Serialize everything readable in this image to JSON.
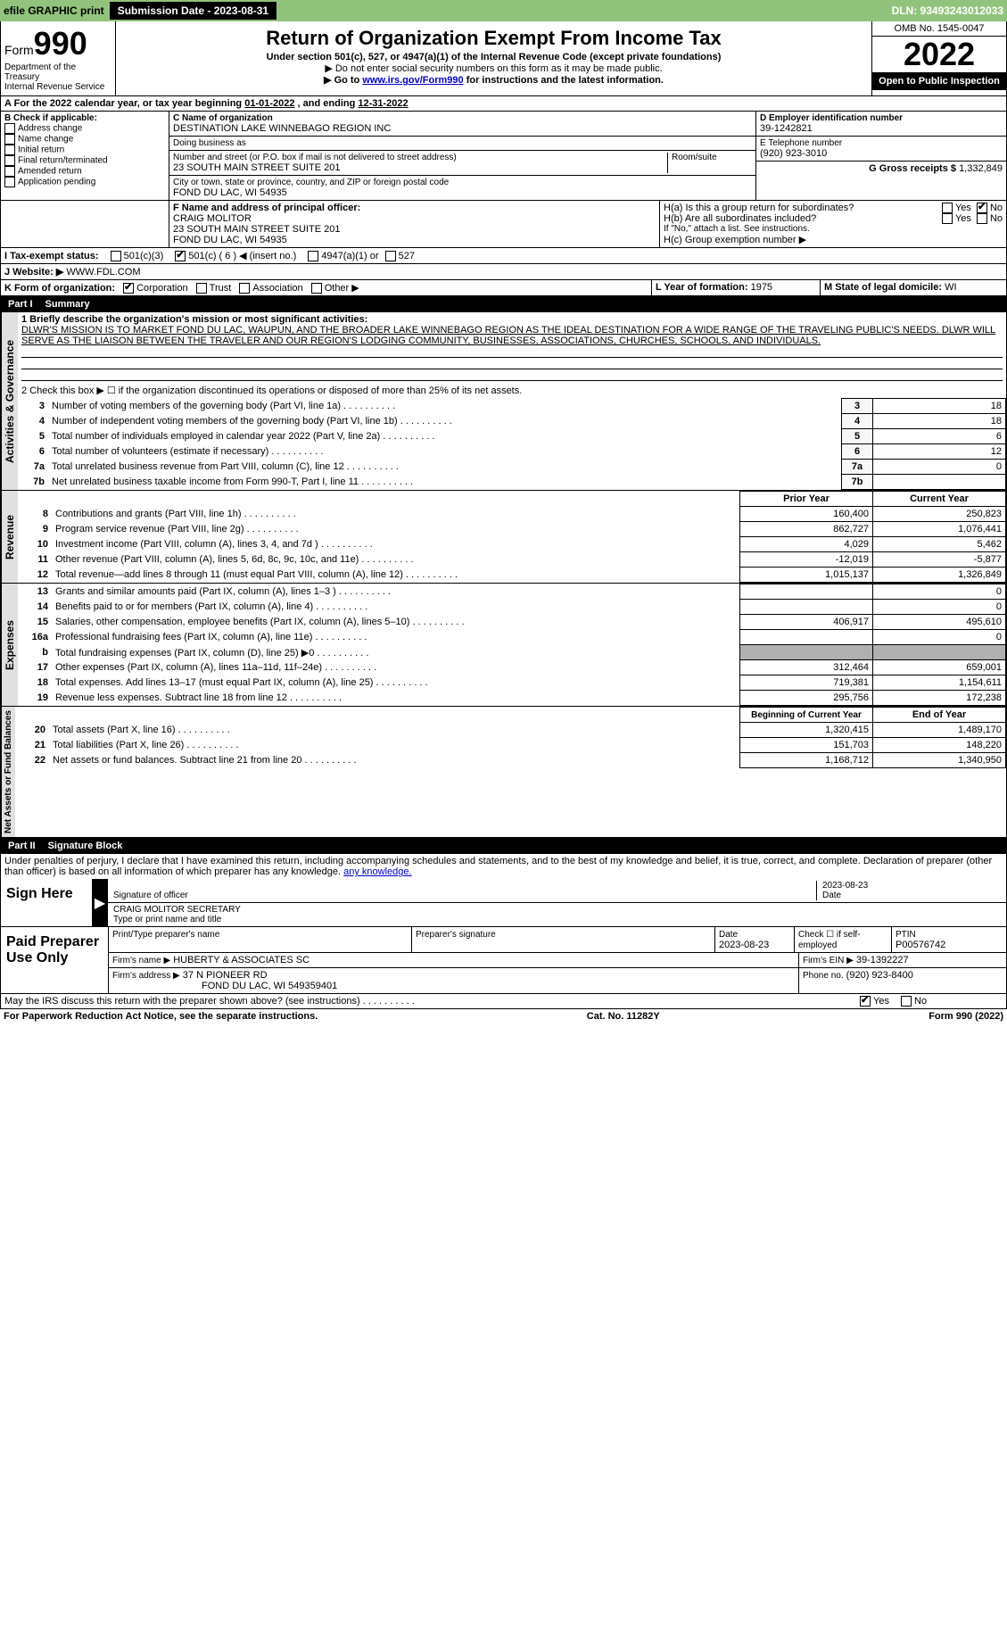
{
  "topbar": {
    "efile": "efile GRAPHIC print",
    "submission_label": "Submission Date - 2023-08-31",
    "dln": "DLN: 93493243012033"
  },
  "header": {
    "form_prefix": "Form",
    "form_number": "990",
    "dept1": "Department of the Treasury",
    "dept2": "Internal Revenue Service",
    "title": "Return of Organization Exempt From Income Tax",
    "subtitle": "Under section 501(c), 527, or 4947(a)(1) of the Internal Revenue Code (except private foundations)",
    "note1": "▶ Do not enter social security numbers on this form as it may be made public.",
    "note2_pre": "▶ Go to ",
    "note2_link": "www.irs.gov/Form990",
    "note2_post": " for instructions and the latest information.",
    "omb": "OMB No. 1545-0047",
    "year": "2022",
    "inspect": "Open to Public Inspection"
  },
  "period": {
    "line_pre": "For the 2022 calendar year, or tax year beginning ",
    "begin": "01-01-2022",
    "mid": " , and ending ",
    "end": "12-31-2022"
  },
  "boxB": {
    "label": "B Check if applicable:",
    "items": [
      "Address change",
      "Name change",
      "Initial return",
      "Final return/terminated",
      "Amended return",
      "Application pending"
    ]
  },
  "boxC": {
    "name_label": "C Name of organization",
    "name": "DESTINATION LAKE WINNEBAGO REGION INC",
    "dba_label": "Doing business as",
    "dba": "",
    "street_label": "Number and street (or P.O. box if mail is not delivered to street address)",
    "room_label": "Room/suite",
    "street": "23 SOUTH MAIN STREET SUITE 201",
    "city_label": "City or town, state or province, country, and ZIP or foreign postal code",
    "city": "FOND DU LAC, WI  54935"
  },
  "boxD": {
    "label": "D Employer identification number",
    "value": "39-1242821"
  },
  "boxE": {
    "label": "E Telephone number",
    "value": "(920) 923-3010"
  },
  "boxG": {
    "label": "G Gross receipts $",
    "value": "1,332,849"
  },
  "boxF": {
    "label": "F Name and address of principal officer:",
    "name": "CRAIG MOLITOR",
    "street": "23 SOUTH MAIN STREET SUITE 201",
    "city": "FOND DU LAC, WI  54935"
  },
  "boxH": {
    "a_label": "H(a)  Is this a group return for subordinates?",
    "b_label": "H(b)  Are all subordinates included?",
    "b_note": "If \"No,\" attach a list. See instructions.",
    "c_label": "H(c)  Group exemption number ▶",
    "yes": "Yes",
    "no": "No"
  },
  "boxI": {
    "label": "I  Tax-exempt status:",
    "o501c3": "501(c)(3)",
    "o501c": "501(c) ( 6 ) ◀ (insert no.)",
    "o4947": "4947(a)(1) or",
    "o527": "527"
  },
  "boxJ": {
    "label": "J  Website: ▶",
    "value": "WWW.FDL.COM"
  },
  "boxK": {
    "label": "K Form of organization:",
    "corp": "Corporation",
    "trust": "Trust",
    "assoc": "Association",
    "other": "Other ▶"
  },
  "boxL": {
    "label": "L Year of formation:",
    "value": "1975"
  },
  "boxM": {
    "label": "M State of legal domicile:",
    "value": "WI"
  },
  "part1": {
    "label": "Part I",
    "title": "Summary"
  },
  "mission": {
    "label": "1  Briefly describe the organization's mission or most significant activities:",
    "text": "DLWR'S MISSION IS TO MARKET FOND DU LAC, WAUPUN, AND THE BROADER LAKE WINNEBAGO REGION AS THE IDEAL DESTINATION FOR A WIDE RANGE OF THE TRAVELING PUBLIC'S NEEDS. DLWR WILL SERVE AS THE LIAISON BETWEEN THE TRAVELER AND OUR REGION'S LODGING COMMUNITY, BUSINESSES, ASSOCIATIONS, CHURCHES, SCHOOLS, AND INDIVIDUALS."
  },
  "governance": {
    "tab": "Activities & Governance",
    "line2": "2  Check this box ▶ ☐ if the organization discontinued its operations or disposed of more than 25% of its net assets.",
    "rows": [
      {
        "n": "3",
        "d": "Number of voting members of the governing body (Part VI, line 1a)",
        "v": "18"
      },
      {
        "n": "4",
        "d": "Number of independent voting members of the governing body (Part VI, line 1b)",
        "v": "18"
      },
      {
        "n": "5",
        "d": "Total number of individuals employed in calendar year 2022 (Part V, line 2a)",
        "v": "6"
      },
      {
        "n": "6",
        "d": "Total number of volunteers (estimate if necessary)",
        "v": "12"
      },
      {
        "n": "7a",
        "d": "Total unrelated business revenue from Part VIII, column (C), line 12",
        "v": "0"
      },
      {
        "n": "7b",
        "d": "Net unrelated business taxable income from Form 990-T, Part I, line 11",
        "v": ""
      }
    ]
  },
  "revenue": {
    "tab": "Revenue",
    "col_prior": "Prior Year",
    "col_current": "Current Year",
    "rows": [
      {
        "n": "8",
        "d": "Contributions and grants (Part VIII, line 1h)",
        "p": "160,400",
        "c": "250,823"
      },
      {
        "n": "9",
        "d": "Program service revenue (Part VIII, line 2g)",
        "p": "862,727",
        "c": "1,076,441"
      },
      {
        "n": "10",
        "d": "Investment income (Part VIII, column (A), lines 3, 4, and 7d )",
        "p": "4,029",
        "c": "5,462"
      },
      {
        "n": "11",
        "d": "Other revenue (Part VIII, column (A), lines 5, 6d, 8c, 9c, 10c, and 11e)",
        "p": "-12,019",
        "c": "-5,877"
      },
      {
        "n": "12",
        "d": "Total revenue—add lines 8 through 11 (must equal Part VIII, column (A), line 12)",
        "p": "1,015,137",
        "c": "1,326,849"
      }
    ]
  },
  "expenses": {
    "tab": "Expenses",
    "rows": [
      {
        "n": "13",
        "d": "Grants and similar amounts paid (Part IX, column (A), lines 1–3 )",
        "p": "",
        "c": "0"
      },
      {
        "n": "14",
        "d": "Benefits paid to or for members (Part IX, column (A), line 4)",
        "p": "",
        "c": "0"
      },
      {
        "n": "15",
        "d": "Salaries, other compensation, employee benefits (Part IX, column (A), lines 5–10)",
        "p": "406,917",
        "c": "495,610"
      },
      {
        "n": "16a",
        "d": "Professional fundraising fees (Part IX, column (A), line 11e)",
        "p": "",
        "c": "0"
      },
      {
        "n": "b",
        "d": "Total fundraising expenses (Part IX, column (D), line 25) ▶0",
        "p": "GREY",
        "c": "GREY"
      },
      {
        "n": "17",
        "d": "Other expenses (Part IX, column (A), lines 11a–11d, 11f–24e)",
        "p": "312,464",
        "c": "659,001"
      },
      {
        "n": "18",
        "d": "Total expenses. Add lines 13–17 (must equal Part IX, column (A), line 25)",
        "p": "719,381",
        "c": "1,154,611"
      },
      {
        "n": "19",
        "d": "Revenue less expenses. Subtract line 18 from line 12",
        "p": "295,756",
        "c": "172,238"
      }
    ]
  },
  "netassets": {
    "tab": "Net Assets or Fund Balances",
    "col_begin": "Beginning of Current Year",
    "col_end": "End of Year",
    "rows": [
      {
        "n": "20",
        "d": "Total assets (Part X, line 16)",
        "p": "1,320,415",
        "c": "1,489,170"
      },
      {
        "n": "21",
        "d": "Total liabilities (Part X, line 26)",
        "p": "151,703",
        "c": "148,220"
      },
      {
        "n": "22",
        "d": "Net assets or fund balances. Subtract line 21 from line 20",
        "p": "1,168,712",
        "c": "1,340,950"
      }
    ]
  },
  "part2": {
    "label": "Part II",
    "title": "Signature Block"
  },
  "penalties": "Under penalties of perjury, I declare that I have examined this return, including accompanying schedules and statements, and to the best of my knowledge and belief, it is true, correct, and complete. Declaration of preparer (other than officer) is based on all information of which preparer has any knowledge.",
  "sign": {
    "label": "Sign Here",
    "sig_label": "Signature of officer",
    "date_label": "Date",
    "date": "2023-08-23",
    "name": "CRAIG MOLITOR SECRETARY",
    "name_label": "Type or print name and title"
  },
  "preparer": {
    "label": "Paid Preparer Use Only",
    "c1": "Print/Type preparer's name",
    "c2": "Preparer's signature",
    "c3": "Date",
    "c3v": "2023-08-23",
    "c4": "Check ☐ if self-employed",
    "c5": "PTIN",
    "c5v": "P00576742",
    "firm_label": "Firm's name    ▶",
    "firm": "HUBERTY & ASSOCIATES SC",
    "ein_label": "Firm's EIN ▶",
    "ein": "39-1392227",
    "addr_label": "Firm's address ▶",
    "addr1": "37 N PIONEER RD",
    "addr2": "FOND DU LAC, WI  549359401",
    "phone_label": "Phone no.",
    "phone": "(920) 923-8400"
  },
  "discuss": {
    "q": "May the IRS discuss this return with the preparer shown above? (see instructions)",
    "yes": "Yes",
    "no": "No"
  },
  "footer": {
    "left": "For Paperwork Reduction Act Notice, see the separate instructions.",
    "mid": "Cat. No. 11282Y",
    "right": "Form 990 (2022)"
  }
}
